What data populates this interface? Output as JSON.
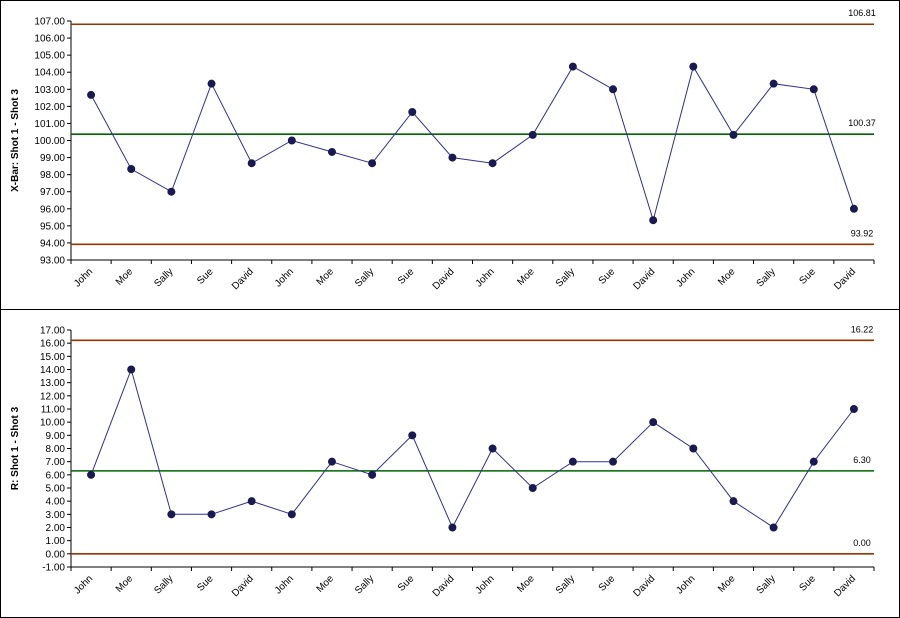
{
  "chart_data": [
    {
      "type": "line",
      "ylabel": "X-Bar: Shot 1 - Shot 3",
      "categories": [
        "John",
        "Moe",
        "Sally",
        "Sue",
        "David",
        "John",
        "Moe",
        "Sally",
        "Sue",
        "David",
        "John",
        "Moe",
        "Sally",
        "Sue",
        "David",
        "John",
        "Moe",
        "Sally",
        "Sue",
        "David"
      ],
      "values": [
        102.67,
        98.33,
        97.0,
        103.33,
        98.67,
        100.0,
        99.33,
        98.67,
        101.67,
        99.0,
        98.67,
        100.33,
        104.33,
        103.0,
        95.33,
        104.33,
        100.33,
        103.33,
        103.0,
        96.0
      ],
      "ylim": [
        93.0,
        107.0
      ],
      "ytick_step": 1.0,
      "ytick_decimals": 2,
      "control_limits": {
        "ucl": {
          "value": 106.81,
          "label": "106.81"
        },
        "center": {
          "value": 100.37,
          "label": "100.37"
        },
        "lcl": {
          "value": 93.92,
          "label": "93.92"
        }
      },
      "colors": {
        "series": "#2e3192",
        "marker": "#1a1a50",
        "limits": "#993300",
        "center": "#006400"
      },
      "grid": false,
      "legend": "none"
    },
    {
      "type": "line",
      "ylabel": "R: Shot 1 - Shot 3",
      "categories": [
        "John",
        "Moe",
        "Sally",
        "Sue",
        "David",
        "John",
        "Moe",
        "Sally",
        "Sue",
        "David",
        "John",
        "Moe",
        "Sally",
        "Sue",
        "David",
        "John",
        "Moe",
        "Sally",
        "Sue",
        "David"
      ],
      "values": [
        6,
        14,
        3,
        3,
        4,
        3,
        7,
        6,
        9,
        2,
        8,
        5,
        7,
        7,
        10,
        8,
        4,
        2,
        7,
        11
      ],
      "ylim": [
        -1.0,
        17.0
      ],
      "ytick_step": 1.0,
      "ytick_decimals": 2,
      "control_limits": {
        "ucl": {
          "value": 16.22,
          "label": "16.22"
        },
        "center": {
          "value": 6.3,
          "label": "6.30"
        },
        "lcl": {
          "value": 0.0,
          "label": "0.00"
        }
      },
      "colors": {
        "series": "#2e3192",
        "marker": "#1a1a50",
        "limits": "#993300",
        "center": "#006400"
      },
      "grid": false,
      "legend": "none"
    }
  ]
}
